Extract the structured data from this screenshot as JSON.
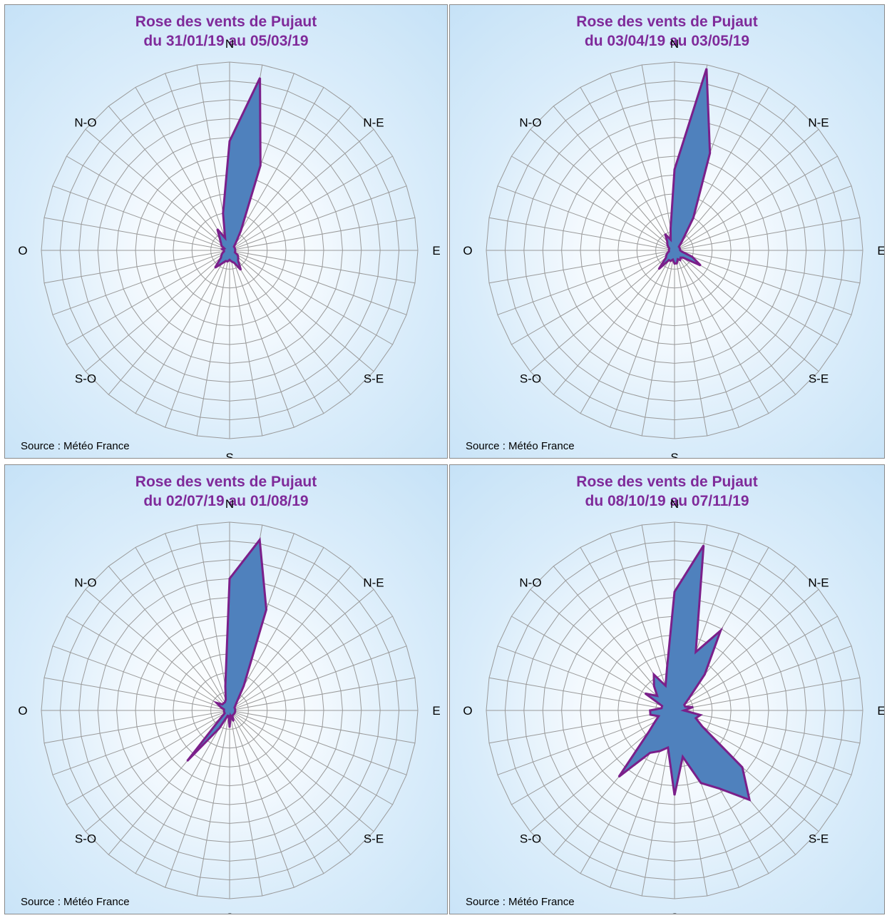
{
  "source_label": "Source : Météo France",
  "colors": {
    "title": "#7f2a9a",
    "fill": "#4f81bd",
    "stroke": "#7b1f8a",
    "grid": "#9a9a9a"
  },
  "chart_data": [
    {
      "type": "radar",
      "title_line1": "Rose des vents de Pujaut",
      "title_line2": "du 31/01/19 au 05/03/19",
      "direction_labels": [
        "N",
        "N-E",
        "E",
        "S-E",
        "S",
        "S-O",
        "O",
        "N-O"
      ],
      "sectors": 36,
      "rlim": [
        0,
        10
      ],
      "grid": true,
      "values": [
        5.8,
        9.3,
        4.8,
        1.2,
        0.5,
        0.3,
        0.3,
        0.3,
        0.3,
        0.3,
        0.3,
        0.3,
        0.5,
        0.6,
        0.7,
        1.2,
        0.7,
        0.6,
        0.5,
        0.6,
        0.6,
        0.8,
        1.2,
        0.6,
        0.5,
        0.4,
        0.3,
        0.3,
        0.4,
        0.3,
        0.5,
        0.6,
        0.8,
        1.3,
        0.7,
        2.0
      ]
    },
    {
      "type": "radar",
      "title_line1": "Rose des vents de Pujaut",
      "title_line2": "du 03/04/19 au 03/05/19",
      "direction_labels": [
        "N",
        "N-E",
        "E",
        "S-E",
        "S",
        "S-O",
        "O",
        "N-O"
      ],
      "sectors": 36,
      "rlim": [
        0,
        10
      ],
      "grid": true,
      "values": [
        4.3,
        9.8,
        5.5,
        2.0,
        0.6,
        0.3,
        0.3,
        0.3,
        0.3,
        0.3,
        0.4,
        1.0,
        1.6,
        0.6,
        0.5,
        0.6,
        0.5,
        0.7,
        0.7,
        0.5,
        0.6,
        0.6,
        1.3,
        0.6,
        0.5,
        0.4,
        0.3,
        0.3,
        0.3,
        0.3,
        0.4,
        0.5,
        0.6,
        1.0,
        0.6,
        1.2
      ]
    },
    {
      "type": "radar",
      "title_line1": "Rose des vents de Pujaut",
      "title_line2": "du 02/07/19 au 01/08/19",
      "direction_labels": [
        "N",
        "N-E",
        "E",
        "S-E",
        "S",
        "S-O",
        "O",
        "N-O"
      ],
      "sectors": 36,
      "rlim": [
        0,
        10
      ],
      "grid": true,
      "values": [
        7.0,
        9.2,
        5.7,
        1.5,
        0.6,
        0.4,
        0.3,
        0.3,
        0.3,
        0.3,
        0.3,
        0.3,
        0.3,
        0.3,
        0.3,
        0.3,
        0.6,
        0.3,
        0.9,
        0.3,
        0.3,
        1.1,
        3.5,
        0.6,
        0.3,
        0.3,
        0.3,
        0.3,
        0.3,
        0.5,
        0.8,
        0.5,
        0.5,
        0.5,
        0.6,
        1.3
      ]
    },
    {
      "type": "radar",
      "title_line1": "Rose des vents de Pujaut",
      "title_line2": "du 08/10/19 au 07/11/19",
      "direction_labels": [
        "N",
        "N-E",
        "E",
        "S-E",
        "S",
        "S-O",
        "O",
        "N-O"
      ],
      "sectors": 36,
      "rlim": [
        0,
        10
      ],
      "grid": true,
      "values": [
        6.3,
        8.9,
        3.3,
        4.9,
        2.5,
        1.0,
        0.6,
        0.6,
        1.0,
        0.5,
        1.4,
        1.2,
        1.7,
        4.7,
        6.2,
        4.8,
        4.1,
        2.5,
        4.5,
        2.0,
        2.3,
        2.6,
        4.6,
        1.8,
        1.2,
        0.9,
        1.3,
        1.3,
        0.7,
        0.7,
        1.8,
        1.2,
        1.7,
        2.2,
        1.4,
        2.3
      ]
    }
  ]
}
